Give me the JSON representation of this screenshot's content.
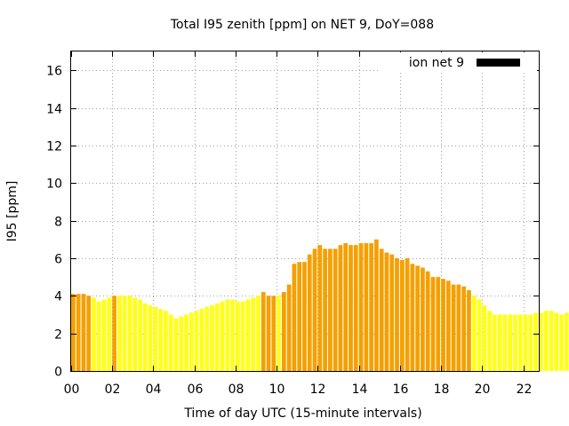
{
  "chart_data": {
    "type": "bar",
    "title": "Total I95 zenith [ppm] on NET 9, DoY=088",
    "xlabel": "Time of day UTC (15-minute intervals)",
    "ylabel": "I95 [ppm]",
    "xlim": [
      0,
      22.75
    ],
    "ylim": [
      0,
      17
    ],
    "grid": true,
    "x_ticks": [
      "00",
      "02",
      "04",
      "06",
      "08",
      "10",
      "12",
      "14",
      "16",
      "18",
      "20",
      "22"
    ],
    "y_ticks": [
      "0",
      "2",
      "4",
      "6",
      "8",
      "10",
      "12",
      "14",
      "16"
    ],
    "legend": {
      "placement": "top-right",
      "label": "ion net 9",
      "color": "#000000"
    },
    "colors": {
      "high": "#f5a000",
      "low": "#ffff1a"
    },
    "bar_interval_hours": 0.25,
    "series": [
      {
        "values": [
          4.1,
          4.1,
          4.1,
          4.0,
          3.9,
          3.7,
          3.8,
          3.9,
          4.0,
          4.0,
          4.0,
          4.0,
          3.9,
          3.8,
          3.6,
          3.5,
          3.4,
          3.3,
          3.2,
          3.0,
          2.8,
          2.9,
          3.0,
          3.1,
          3.2,
          3.3,
          3.4,
          3.5,
          3.6,
          3.7,
          3.8,
          3.8,
          3.7,
          3.7,
          3.8,
          3.9,
          4.0,
          4.2,
          4.0,
          4.0,
          4.0,
          4.2,
          4.6,
          5.7,
          5.8,
          5.8,
          6.2,
          6.5,
          6.7,
          6.5,
          6.5,
          6.5,
          6.7,
          6.8,
          6.7,
          6.7,
          6.8,
          6.8,
          6.8,
          7.0,
          6.5,
          6.3,
          6.2,
          6.0,
          5.9,
          6.0,
          5.7,
          5.6,
          5.5,
          5.3,
          5.0,
          5.0,
          4.9,
          4.8,
          4.6,
          4.6,
          4.5,
          4.3,
          4.0,
          3.8,
          3.5,
          3.2,
          3.0,
          3.0,
          3.0,
          3.0,
          3.0,
          3.0,
          3.0,
          3.0,
          3.1,
          3.1,
          3.2,
          3.2,
          3.1,
          3.0,
          3.1
        ],
        "levels": [
          "high",
          "high",
          "high",
          "high",
          "low",
          "low",
          "low",
          "low",
          "high",
          "low",
          "low",
          "low",
          "low",
          "low",
          "low",
          "low",
          "low",
          "low",
          "low",
          "low",
          "low",
          "low",
          "low",
          "low",
          "low",
          "low",
          "low",
          "low",
          "low",
          "low",
          "low",
          "low",
          "low",
          "low",
          "low",
          "low",
          "low",
          "high",
          "high",
          "high",
          "low",
          "high",
          "high",
          "high",
          "high",
          "high",
          "high",
          "high",
          "high",
          "high",
          "high",
          "high",
          "high",
          "high",
          "high",
          "high",
          "high",
          "high",
          "high",
          "high",
          "high",
          "high",
          "high",
          "high",
          "high",
          "high",
          "high",
          "high",
          "high",
          "high",
          "high",
          "high",
          "high",
          "high",
          "high",
          "high",
          "high",
          "high",
          "low",
          "low",
          "low",
          "low",
          "low",
          "low",
          "low",
          "low",
          "low",
          "low",
          "low",
          "low",
          "low",
          "low",
          "low",
          "low",
          "low",
          "low",
          "low"
        ]
      }
    ]
  }
}
